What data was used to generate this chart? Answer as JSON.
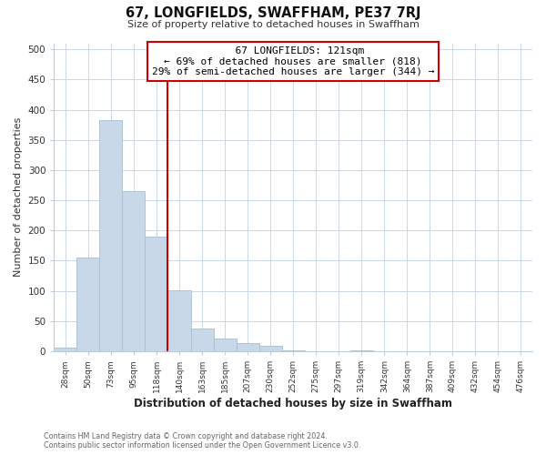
{
  "title": "67, LONGFIELDS, SWAFFHAM, PE37 7RJ",
  "subtitle": "Size of property relative to detached houses in Swaffham",
  "xlabel": "Distribution of detached houses by size in Swaffham",
  "ylabel": "Number of detached properties",
  "footer_line1": "Contains HM Land Registry data © Crown copyright and database right 2024.",
  "footer_line2": "Contains public sector information licensed under the Open Government Licence v3.0.",
  "bar_labels": [
    "28sqm",
    "50sqm",
    "73sqm",
    "95sqm",
    "118sqm",
    "140sqm",
    "163sqm",
    "185sqm",
    "207sqm",
    "230sqm",
    "252sqm",
    "275sqm",
    "297sqm",
    "319sqm",
    "342sqm",
    "364sqm",
    "387sqm",
    "409sqm",
    "432sqm",
    "454sqm",
    "476sqm"
  ],
  "bar_values": [
    6,
    155,
    383,
    265,
    190,
    101,
    37,
    21,
    13,
    9,
    1,
    0,
    0,
    2,
    0,
    0,
    0,
    0,
    0,
    0,
    0
  ],
  "bar_color": "#c8d8e8",
  "bar_edge_color": "#a8bfd0",
  "property_line_index": 4,
  "property_line_color": "#cc0000",
  "annotation_title": "67 LONGFIELDS: 121sqm",
  "annotation_line1": "← 69% of detached houses are smaller (818)",
  "annotation_line2": "29% of semi-detached houses are larger (344) →",
  "annotation_box_edge": "#cc0000",
  "ylim": [
    0,
    510
  ],
  "yticks": [
    0,
    50,
    100,
    150,
    200,
    250,
    300,
    350,
    400,
    450,
    500
  ],
  "background_color": "#ffffff",
  "grid_color": "#ccd8e8"
}
